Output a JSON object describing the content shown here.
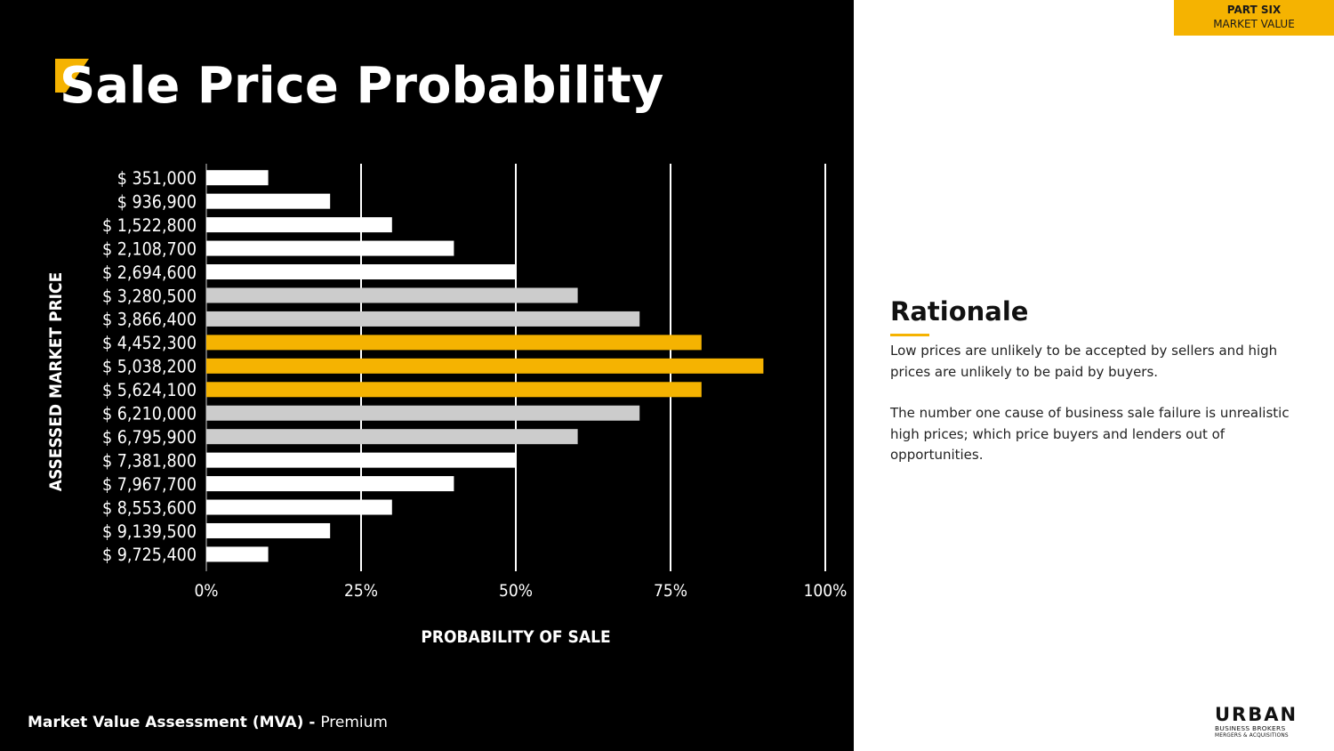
{
  "page": {
    "title": "Sale Price Probability",
    "section_tab": {
      "part": "PART SIX",
      "section": "MARKET VALUE"
    },
    "footer": {
      "label": "Market Value Assessment (MVA) - ",
      "tier": "Premium"
    },
    "rationale": {
      "heading": "Rationale",
      "paragraphs": [
        "Low prices are unlikely to be accepted by sellers and high prices are unlikely to be paid by buyers.",
        "The number one cause of business sale failure is unrealistic high prices; which price buyers and lenders out of opportunities."
      ]
    },
    "logo": {
      "word": "URBAN",
      "line1": "BUSINESS BROKERS",
      "line2": "MERGERS & ACQUISITIONS"
    }
  },
  "colors": {
    "background": "#000000",
    "accent": "#f5b301",
    "bar_white": "#ffffff",
    "bar_grey": "#cccccc"
  },
  "chart_data": {
    "type": "bar",
    "orientation": "horizontal",
    "title": "Sale Price Probability",
    "xlabel": "PROBABILITY OF SALE",
    "ylabel": "ASSESSED MARKET PRICE",
    "xlim": [
      0,
      100
    ],
    "x_tick_labels": [
      "0%",
      "25%",
      "50%",
      "75%",
      "100%"
    ],
    "x_ticks": [
      0,
      25,
      50,
      75,
      100
    ],
    "grid": "vertical",
    "categories": [
      "$ 351,000",
      "$ 936,900",
      "$ 1,522,800",
      "$ 2,108,700",
      "$ 2,694,600",
      "$ 3,280,500",
      "$ 3,866,400",
      "$ 4,452,300",
      "$ 5,038,200",
      "$ 5,624,100",
      "$ 6,210,000",
      "$ 6,795,900",
      "$ 7,381,800",
      "$ 7,967,700",
      "$ 8,553,600",
      "$ 9,139,500",
      "$ 9,725,400"
    ],
    "values": [
      10,
      20,
      30,
      40,
      50,
      60,
      70,
      80,
      90,
      80,
      70,
      60,
      50,
      40,
      30,
      20,
      10
    ],
    "bar_colors": [
      "#ffffff",
      "#ffffff",
      "#ffffff",
      "#ffffff",
      "#ffffff",
      "#cccccc",
      "#cccccc",
      "#f5b301",
      "#f5b301",
      "#f5b301",
      "#cccccc",
      "#cccccc",
      "#ffffff",
      "#ffffff",
      "#ffffff",
      "#ffffff",
      "#ffffff"
    ]
  }
}
